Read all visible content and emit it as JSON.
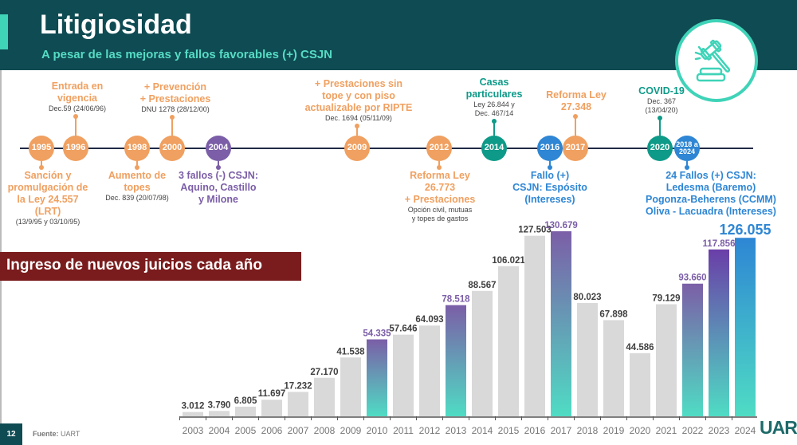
{
  "header": {
    "title": "Litigiosidad",
    "subtitle": "A pesar de las mejoras y fallos favorables (+) CSJN",
    "icon": "gavel-icon"
  },
  "colors": {
    "header": "#0f4b53",
    "accent": "#3fd3b8",
    "orange": "#f0a060",
    "purple": "#7b5ea7",
    "teal": "#0e9a88",
    "blue": "#2e86d4",
    "bar": "#d9d9d9",
    "banner": "#7a1c1d"
  },
  "timeline": [
    {
      "year": "1995",
      "color": "orange",
      "side": "below",
      "title": [
        "Sanción y",
        "promulgación de",
        "la Ley 24.557",
        "(LRT)"
      ],
      "sub": [
        "(13/9/95 y 03/10/95)"
      ]
    },
    {
      "year": "1996",
      "color": "orange",
      "side": "above",
      "title": [
        "Entrada en",
        "vigencia"
      ],
      "sub": [
        "Dec.59 (24/06/96)"
      ]
    },
    {
      "year": "1998",
      "color": "orange",
      "side": "below",
      "title": [
        "Aumento de",
        "topes"
      ],
      "sub": [
        "Dec. 839 (20/07/98)"
      ]
    },
    {
      "year": "2000",
      "color": "orange",
      "side": "above",
      "title": [
        "+ Prevención",
        "+ Prestaciones"
      ],
      "sub": [
        "DNU 1278 (28/12/00)"
      ]
    },
    {
      "year": "2004",
      "color": "purple",
      "side": "below",
      "title": [
        "3 fallos (-) CSJN:",
        "Aquino, Castillo",
        "y Milone"
      ],
      "sub": []
    },
    {
      "year": "2009",
      "color": "orange",
      "side": "above",
      "title": [
        "+ Prestaciones sin",
        "tope y con piso",
        "actualizable por RIPTE"
      ],
      "sub": [
        "Dec. 1694 (05/11/09)"
      ]
    },
    {
      "year": "2012",
      "color": "orange",
      "side": "below",
      "title": [
        "Reforma Ley",
        "26.773",
        "+ Prestaciones"
      ],
      "sub": [
        "Opción civil, mutuas",
        "y topes de gastos"
      ]
    },
    {
      "year": "2014",
      "color": "teal",
      "side": "above",
      "title": [
        "Casas",
        "particulares"
      ],
      "sub": [
        "Ley 26.844 y",
        "Dec. 467/14"
      ]
    },
    {
      "year": "2016",
      "color": "blue",
      "side": "below",
      "title": [
        "Fallo (+)",
        "CSJN: Espósito",
        "(Intereses)"
      ],
      "sub": []
    },
    {
      "year": "2017",
      "color": "orange",
      "side": "above",
      "title": [
        "Reforma Ley",
        "27.348"
      ],
      "sub": []
    },
    {
      "year": "2020",
      "color": "teal",
      "side": "above",
      "title": [
        "COVID-19"
      ],
      "sub": [
        "Dec. 367",
        "(13/04/20)"
      ]
    },
    {
      "year": "2018 a 2024",
      "color": "blue",
      "side": "below",
      "title": [
        "24 Fallos (+) CSJN:",
        "Ledesma (Baremo)",
        "Pogonza-Beherens (CCMM)",
        "Oliva - Lacuadra (Intereses)"
      ],
      "sub": []
    }
  ],
  "banner": "Ingreso de nuevos juicios cada año",
  "chart_data": {
    "type": "bar",
    "title": "Ingreso de nuevos juicios cada año",
    "categories": [
      "2003",
      "2004",
      "2005",
      "2006",
      "2007",
      "2008",
      "2009",
      "2010",
      "2011",
      "2012",
      "2013",
      "2014",
      "2015",
      "2016",
      "2017",
      "2018",
      "2019",
      "2020",
      "2021",
      "2022",
      "2023",
      "2024"
    ],
    "values": [
      3012,
      3790,
      6805,
      11697,
      17232,
      27170,
      41538,
      54335,
      57646,
      64093,
      78518,
      88567,
      106021,
      127503,
      130679,
      80023,
      67898,
      44586,
      79129,
      93660,
      117856,
      126055
    ],
    "labels": [
      "3.012",
      "3.790",
      "6.805",
      "11.697",
      "17.232",
      "27.170",
      "41.538",
      "54.335",
      "57.646",
      "64.093",
      "78.518",
      "88.567",
      "106.021",
      "127.503",
      "130.679",
      "80.023",
      "67.898",
      "44.586",
      "79.129",
      "93.660",
      "117.856",
      "126.055"
    ],
    "highlighted": [
      "2010",
      "2013",
      "2017",
      "2022",
      "2023",
      "2024"
    ],
    "ylim": [
      0,
      135000
    ],
    "grid": false
  },
  "footer": {
    "page": "12",
    "source_label": "Fuente:",
    "source": "UART",
    "logo": "UART"
  }
}
